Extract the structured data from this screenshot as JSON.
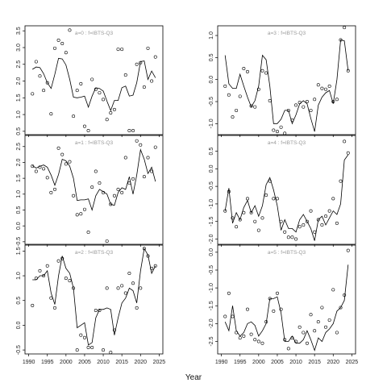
{
  "figure": {
    "xlabel": "Year"
  },
  "chart_data": [
    {
      "type": "line",
      "title": "a=0  :  f=IBTS-Q3",
      "xlim": [
        1989,
        2026
      ],
      "ylim": [
        0.4,
        3.65
      ],
      "x_ticks": [
        1990,
        1995,
        2000,
        2005,
        2010,
        2015,
        2020,
        2025
      ],
      "y_ticks": [
        0.5,
        1.0,
        1.5,
        2.0,
        2.5,
        3.0,
        3.5
      ],
      "y_tick_labels": [
        "0.5",
        "1.0",
        "1.5",
        "2.0",
        "2.5",
        "3.0",
        "3.5"
      ],
      "series": [
        {
          "role": "fitted",
          "style": "line",
          "x": [
            1991,
            1992,
            1993,
            1994,
            1995,
            1996,
            1997,
            1998,
            1999,
            2000,
            2001,
            2002,
            2003,
            2004,
            2005,
            2006,
            2007,
            2008,
            2009,
            2010,
            2011,
            2012,
            2013,
            2014,
            2015,
            2016,
            2017,
            2018,
            2019,
            2020,
            2021,
            2022,
            2023,
            2024
          ],
          "y": [
            2.35,
            2.42,
            2.4,
            2.22,
            1.95,
            1.78,
            2.2,
            2.68,
            2.66,
            2.48,
            2.05,
            1.52,
            1.5,
            1.52,
            1.55,
            1.22,
            1.55,
            1.8,
            1.78,
            1.7,
            1.4,
            1.12,
            1.42,
            1.42,
            1.8,
            1.85,
            1.55,
            1.58,
            1.95,
            2.58,
            2.6,
            2.05,
            2.3,
            2.1
          ]
        },
        {
          "role": "observed",
          "style": "points",
          "x": [
            1991,
            1992,
            1993,
            1994,
            1995,
            1996,
            1997,
            1998,
            1999,
            2000,
            2001,
            2002,
            2003,
            2004,
            2005,
            2006,
            2007,
            2008,
            2009,
            2010,
            2011,
            2012,
            2013,
            2014,
            2015,
            2016,
            2017,
            2018,
            2019,
            2020,
            2021,
            2022,
            2023,
            2024
          ],
          "y": [
            1.62,
            2.58,
            2.15,
            1.72,
            1.95,
            1.02,
            2.98,
            3.22,
            3.12,
            2.85,
            3.52,
            0.95,
            1.72,
            1.92,
            0.65,
            0.52,
            2.05,
            1.75,
            1.65,
            1.45,
            0.85,
            1.05,
            1.15,
            2.95,
            2.95,
            2.18,
            0.52,
            0.52,
            2.5,
            2.55,
            1.82,
            2.98,
            2.0,
            2.72
          ]
        }
      ]
    },
    {
      "type": "line",
      "title": "a=1  :  f=IBTS-Q3",
      "xlim": [
        1989,
        2026
      ],
      "ylim": [
        -0.58,
        2.85
      ],
      "x_ticks": [
        1990,
        1995,
        2000,
        2005,
        2010,
        2015,
        2020,
        2025
      ],
      "y_ticks": [
        -0.5,
        0.0,
        0.5,
        1.0,
        1.5,
        2.0,
        2.5
      ],
      "y_tick_labels": [
        "-0.5",
        "0.0",
        "0.5",
        "1.0",
        "1.5",
        "2.0",
        "2.5"
      ],
      "series": [
        {
          "role": "fitted",
          "style": "line",
          "x": [
            1991,
            1992,
            1993,
            1994,
            1995,
            1996,
            1997,
            1998,
            1999,
            2000,
            2001,
            2002,
            2003,
            2004,
            2005,
            2006,
            2007,
            2008,
            2009,
            2010,
            2011,
            2012,
            2013,
            2014,
            2015,
            2016,
            2017,
            2018,
            2019,
            2020,
            2021,
            2022,
            2023,
            2024
          ],
          "y": [
            1.9,
            1.82,
            1.88,
            1.92,
            1.85,
            1.6,
            1.28,
            1.62,
            2.1,
            2.05,
            1.88,
            1.5,
            0.8,
            0.82,
            0.82,
            0.85,
            0.5,
            0.95,
            1.15,
            1.08,
            1.0,
            0.68,
            0.65,
            1.05,
            1.2,
            1.15,
            1.55,
            1.0,
            1.6,
            2.4,
            2.1,
            1.65,
            1.85,
            1.4
          ]
        },
        {
          "role": "observed",
          "style": "points",
          "x": [
            1991,
            1992,
            1993,
            1994,
            1995,
            1996,
            1997,
            1998,
            1999,
            2000,
            2001,
            2002,
            2003,
            2004,
            2005,
            2006,
            2007,
            2008,
            2009,
            2010,
            2011,
            2012,
            2013,
            2014,
            2015,
            2016,
            2017,
            2018,
            2019,
            2020,
            2021,
            2022,
            2023,
            2024
          ],
          "y": [
            1.88,
            1.72,
            1.85,
            1.8,
            1.52,
            1.05,
            1.15,
            2.45,
            2.25,
            1.95,
            2.02,
            0.95,
            0.35,
            0.38,
            0.52,
            -0.2,
            1.22,
            1.72,
            1.35,
            1.05,
            -0.48,
            0.68,
            0.95,
            1.15,
            1.05,
            2.15,
            1.35,
            1.48,
            2.68,
            2.55,
            1.55,
            2.15,
            1.72,
            2.48
          ]
        }
      ]
    },
    {
      "type": "line",
      "title": "a=2  :  f=IBTS-Q3",
      "xlim": [
        1989,
        2026
      ],
      "ylim": [
        -0.58,
        1.62
      ],
      "x_ticks": [
        1990,
        1995,
        2000,
        2005,
        2010,
        2015,
        2020,
        2025
      ],
      "y_ticks": [
        -0.5,
        0.0,
        0.5,
        1.0,
        1.5
      ],
      "y_tick_labels": [
        "-0.5",
        "0.0",
        "0.5",
        "1.0",
        "1.5"
      ],
      "series": [
        {
          "role": "fitted",
          "style": "line",
          "x": [
            1991,
            1992,
            1993,
            1994,
            1995,
            1996,
            1997,
            1998,
            1999,
            2000,
            2001,
            2002,
            2003,
            2004,
            2005,
            2006,
            2007,
            2008,
            2009,
            2010,
            2011,
            2012,
            2013,
            2014,
            2015,
            2016,
            2017,
            2018,
            2019,
            2020,
            2021,
            2022,
            2023,
            2024
          ],
          "y": [
            0.92,
            0.92,
            1.0,
            1.0,
            1.1,
            0.65,
            0.42,
            1.0,
            1.4,
            1.15,
            1.05,
            0.75,
            -0.05,
            0.0,
            0.05,
            -0.4,
            -0.35,
            0.15,
            0.32,
            0.32,
            0.35,
            0.32,
            -0.2,
            0.15,
            0.45,
            0.55,
            0.75,
            0.7,
            0.45,
            1.1,
            1.55,
            1.42,
            1.05,
            1.2
          ]
        },
        {
          "role": "observed",
          "style": "points",
          "x": [
            1991,
            1992,
            1993,
            1994,
            1995,
            1996,
            1997,
            1998,
            1999,
            2000,
            2001,
            2002,
            2003,
            2004,
            2005,
            2006,
            2007,
            2008,
            2009,
            2010,
            2011,
            2012,
            2013,
            2014,
            2015,
            2016,
            2017,
            2018,
            2019,
            2020,
            2021,
            2022,
            2023,
            2024
          ],
          "y": [
            0.4,
            0.95,
            1.1,
            1.0,
            1.2,
            0.55,
            0.35,
            1.3,
            1.35,
            0.95,
            0.9,
            0.75,
            -0.5,
            -0.2,
            -0.25,
            -0.45,
            -0.45,
            0.3,
            0.3,
            -0.5,
            0.75,
            -0.55,
            -0.1,
            0.75,
            0.8,
            0.65,
            1.05,
            0.85,
            0.35,
            0.75,
            1.55,
            1.4,
            1.15,
            1.2
          ]
        }
      ]
    },
    {
      "type": "line",
      "title": "a=3  :  f=IBTS-Q3",
      "xlim": [
        1989,
        2026
      ],
      "ylim": [
        -1.25,
        1.22
      ],
      "x_ticks": [
        1990,
        1995,
        2000,
        2005,
        2010,
        2015,
        2020,
        2025
      ],
      "y_ticks": [
        -1.0,
        -0.5,
        0.0,
        0.5,
        1.0
      ],
      "y_tick_labels": [
        "-1.0",
        "-0.5",
        "0.0",
        "0.5",
        "1.0"
      ],
      "series": [
        {
          "role": "fitted",
          "style": "line",
          "x": [
            1991,
            1992,
            1993,
            1994,
            1995,
            1996,
            1997,
            1998,
            1999,
            2000,
            2001,
            2002,
            2003,
            2004,
            2005,
            2006,
            2007,
            2008,
            2009,
            2010,
            2011,
            2012,
            2013,
            2014,
            2015,
            2016,
            2017,
            2018,
            2019,
            2020,
            2021,
            2022,
            2023,
            2024
          ],
          "y": [
            0.55,
            -0.1,
            -0.2,
            -0.2,
            0.12,
            -0.15,
            -0.4,
            -0.62,
            -0.48,
            -0.15,
            0.55,
            0.45,
            -0.15,
            -1.0,
            -1.0,
            -0.9,
            -0.7,
            -0.7,
            -1.0,
            -0.8,
            -0.55,
            -0.48,
            -0.55,
            -0.88,
            -1.18,
            -0.58,
            -0.4,
            -0.3,
            -0.25,
            -0.55,
            0.0,
            0.9,
            0.88,
            0.2
          ]
        },
        {
          "role": "observed",
          "style": "points",
          "x": [
            1991,
            1992,
            1993,
            1994,
            1995,
            1996,
            1997,
            1998,
            1999,
            2000,
            2001,
            2002,
            2003,
            2004,
            2005,
            2006,
            2007,
            2008,
            2009,
            2010,
            2011,
            2012,
            2013,
            2014,
            2015,
            2016,
            2017,
            2018,
            2019,
            2020,
            2021,
            2022,
            2023,
            2024
          ],
          "y": [
            -0.15,
            -0.35,
            -0.85,
            -0.7,
            -0.38,
            0.25,
            0.18,
            -0.6,
            -0.62,
            -0.22,
            0.2,
            0.15,
            -0.48,
            -1.15,
            -1.18,
            -1.08,
            -1.22,
            -0.7,
            -0.92,
            -0.58,
            -0.52,
            -0.62,
            -0.5,
            -0.7,
            -0.45,
            -0.12,
            -0.2,
            -0.22,
            -0.15,
            -0.5,
            -0.45,
            0.9,
            1.18,
            0.2
          ]
        }
      ]
    },
    {
      "type": "line",
      "title": "a=4  :  f=IBTS-Q3",
      "xlim": [
        1989,
        2026
      ],
      "ylim": [
        -2.15,
        0.95
      ],
      "x_ticks": [
        1990,
        1995,
        2000,
        2005,
        2010,
        2015,
        2020,
        2025
      ],
      "y_ticks": [
        -2.0,
        -1.5,
        -1.0,
        -0.5,
        0.0,
        0.5
      ],
      "y_tick_labels": [
        "-2.0",
        "-1.5",
        "-1.0",
        "-0.5",
        "0.0",
        "0.5"
      ],
      "series": [
        {
          "role": "fitted",
          "style": "line",
          "x": [
            1991,
            1992,
            1993,
            1994,
            1995,
            1996,
            1997,
            1998,
            1999,
            2000,
            2001,
            2002,
            2003,
            2004,
            2005,
            2006,
            2007,
            2008,
            2009,
            2010,
            2011,
            2012,
            2013,
            2014,
            2015,
            2016,
            2017,
            2018,
            2019,
            2020,
            2021,
            2022,
            2023,
            2024
          ],
          "y": [
            -1.2,
            -0.55,
            -1.55,
            -1.25,
            -1.45,
            -1.1,
            -0.9,
            -1.25,
            -1.05,
            -1.35,
            -1.05,
            -0.45,
            -0.25,
            -0.6,
            -1.05,
            -1.75,
            -1.45,
            -1.7,
            -1.7,
            -1.8,
            -1.45,
            -1.3,
            -1.5,
            -1.7,
            -2.05,
            -1.45,
            -1.35,
            -1.6,
            -1.4,
            -1.2,
            -1.3,
            -1.0,
            0.25,
            0.4
          ]
        },
        {
          "role": "observed",
          "style": "points",
          "x": [
            1991,
            1992,
            1993,
            1994,
            1995,
            1996,
            1997,
            1998,
            1999,
            2000,
            2001,
            2002,
            2003,
            2004,
            2005,
            2006,
            2007,
            2008,
            2009,
            2010,
            2011,
            2012,
            2013,
            2014,
            2015,
            2016,
            2017,
            2018,
            2019,
            2020,
            2021,
            2022,
            2023,
            2024
          ],
          "y": [
            -1.2,
            -0.65,
            -1.4,
            -1.65,
            -1.45,
            -1.25,
            -0.85,
            -1.25,
            -1.5,
            -1.75,
            -1.4,
            -0.75,
            -0.35,
            -0.85,
            -0.85,
            -1.5,
            -1.8,
            -1.95,
            -1.95,
            -2.0,
            -1.65,
            -1.6,
            -1.5,
            -1.2,
            -1.8,
            -1.45,
            -1.6,
            -1.35,
            -1.2,
            -0.85,
            -1.55,
            -0.35,
            0.78,
            0.45
          ]
        }
      ]
    },
    {
      "type": "line",
      "title": "a=5  :  f=IBTS-Q3",
      "xlim": [
        1989,
        2026
      ],
      "ylim": [
        -2.85,
        0.2
      ],
      "x_ticks": [
        1990,
        1995,
        2000,
        2005,
        2010,
        2015,
        2020,
        2025
      ],
      "y_ticks": [
        -2.5,
        -2.0,
        -1.5,
        -1.0,
        -0.5,
        0.0
      ],
      "y_tick_labels": [
        "-2.5",
        "-2.0",
        "-1.5",
        "-1.0",
        "-0.5",
        "0.0"
      ],
      "series": [
        {
          "role": "fitted",
          "style": "line",
          "x": [
            1991,
            1992,
            1993,
            1994,
            1995,
            1996,
            1997,
            1998,
            1999,
            2000,
            2001,
            2002,
            2003,
            2004,
            2005,
            2006,
            2007,
            2008,
            2009,
            2010,
            2011,
            2012,
            2013,
            2014,
            2015,
            2016,
            2017,
            2018,
            2019,
            2020,
            2021,
            2022,
            2023,
            2024
          ],
          "y": [
            -1.95,
            -2.2,
            -1.5,
            -2.2,
            -2.35,
            -2.25,
            -2.0,
            -1.95,
            -2.05,
            -2.35,
            -2.2,
            -2.0,
            -1.3,
            -1.3,
            -1.25,
            -1.7,
            -2.5,
            -2.5,
            -2.35,
            -2.55,
            -2.55,
            -2.45,
            -2.2,
            -2.45,
            -2.75,
            -2.4,
            -2.5,
            -2.25,
            -2.15,
            -2.0,
            -1.65,
            -1.55,
            -1.35,
            -0.35
          ]
        },
        {
          "role": "observed",
          "style": "points",
          "x": [
            1991,
            1992,
            1993,
            1994,
            1995,
            1996,
            1997,
            1998,
            1999,
            2000,
            2001,
            2002,
            2003,
            2004,
            2005,
            2006,
            2007,
            2008,
            2009,
            2010,
            2011,
            2012,
            2013,
            2014,
            2015,
            2016,
            2017,
            2018,
            2019,
            2020,
            2021,
            2022,
            2023,
            2024
          ],
          "y": [
            -1.8,
            -1.15,
            -1.8,
            -2.25,
            -2.4,
            -2.35,
            -1.6,
            -2.3,
            -2.45,
            -2.5,
            -2.55,
            -1.95,
            -1.3,
            -1.65,
            -1.15,
            -1.6,
            -2.45,
            -2.7,
            -2.4,
            -2.5,
            -2.1,
            -2.25,
            -2.55,
            -1.75,
            -2.2,
            -1.95,
            -1.55,
            -2.1,
            -1.9,
            -1.05,
            -2.25,
            -1.55,
            -1.2,
            0.05
          ]
        }
      ]
    }
  ]
}
